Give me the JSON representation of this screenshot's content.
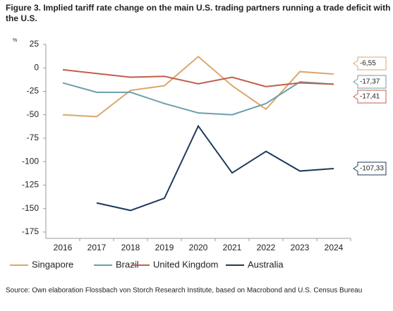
{
  "chart_data": {
    "type": "line",
    "title": "Figure 3. Implied tariff rate change on the main U.S. trading partners running a trade deficit with the U.S.",
    "y_unit": "%",
    "source": "Source: Own elaboration Flossbach von Storch Research Institute, based on Macrobond and U.S. Census Bureau",
    "categories": [
      "2016",
      "2017",
      "2018",
      "2019",
      "2020",
      "2021",
      "2022",
      "2023",
      "2024"
    ],
    "ylim": [
      -175,
      25
    ],
    "yticks": [
      25,
      0,
      -25,
      -50,
      -75,
      -100,
      -125,
      -150,
      -175
    ],
    "grid": false,
    "legend": "bottom",
    "series": [
      {
        "name": "Singapore",
        "color": "#dba76a",
        "values": [
          -50,
          -52,
          -24,
          -19,
          12,
          -19,
          -44,
          -4,
          -6.55
        ],
        "value_labels": [
          null,
          null,
          null,
          null,
          null,
          null,
          null,
          null,
          "-6,55"
        ]
      },
      {
        "name": "Brazil",
        "color": "#6a9fae",
        "values": [
          -16,
          -26,
          -26,
          -38,
          -48,
          -50,
          -38,
          -15,
          -17.37
        ],
        "value_labels": [
          null,
          null,
          null,
          null,
          null,
          null,
          null,
          null,
          "-17,37"
        ]
      },
      {
        "name": "United Kingdom",
        "color": "#c0604a",
        "values": [
          -2,
          -6,
          -10,
          -9,
          -17,
          -10,
          -20,
          -16,
          -17.41
        ],
        "value_labels": [
          null,
          null,
          null,
          null,
          null,
          null,
          null,
          null,
          "-17,41"
        ]
      },
      {
        "name": "Australia",
        "color": "#1e3a5c",
        "values": [
          null,
          -144,
          -152,
          -139,
          -62,
          -112,
          -89,
          -110,
          -107.33
        ],
        "value_labels": [
          null,
          null,
          null,
          null,
          null,
          null,
          null,
          null,
          "-107,33"
        ]
      }
    ]
  }
}
